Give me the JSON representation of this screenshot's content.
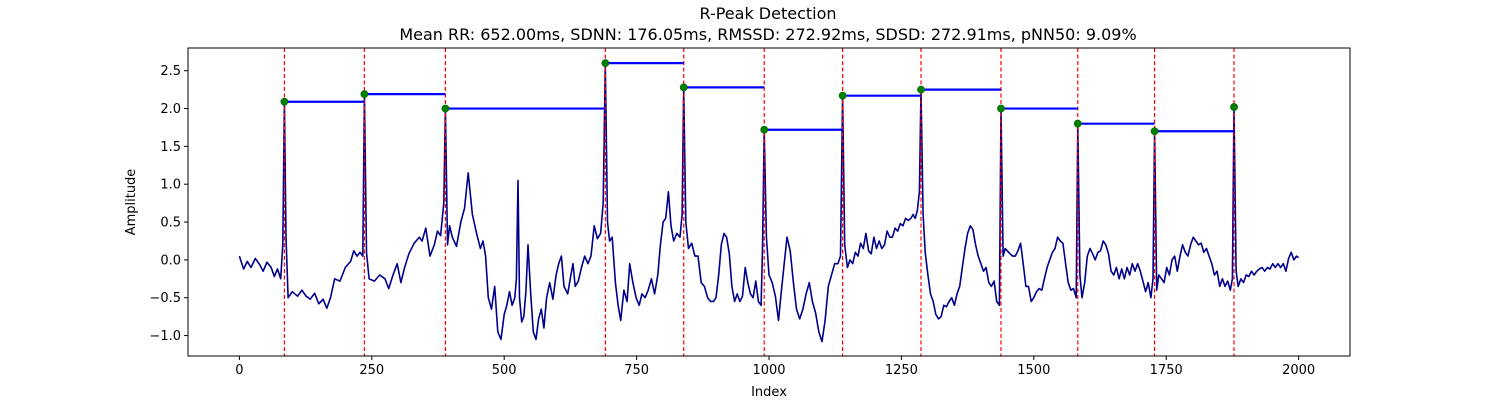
{
  "chart_data": {
    "type": "line",
    "title": "R-Peak Detection",
    "subtitle": "Mean RR: 652.00ms, SDNN: 176.05ms, RMSSD: 272.92ms, SDSD: 272.91ms, pNN50: 9.09%",
    "xlabel": "Index",
    "ylabel": "Amplitude",
    "xlim": [
      -97,
      2097
    ],
    "ylim": [
      -1.27,
      2.8
    ],
    "xticks": [
      0,
      250,
      500,
      750,
      1000,
      1250,
      1500,
      1750,
      2000
    ],
    "yticks": [
      -1.0,
      -0.5,
      0.0,
      0.5,
      1.0,
      1.5,
      2.0,
      2.5
    ],
    "grid": false,
    "colors": {
      "signal": "#00008b",
      "peak_line": "#ff0000",
      "rr_segment": "#0000ff",
      "peak_marker": "#008000",
      "axes": "#000000"
    },
    "signal_points": [
      [
        0,
        0.05
      ],
      [
        8,
        -0.12
      ],
      [
        15,
        -0.02
      ],
      [
        22,
        -0.1
      ],
      [
        30,
        0.02
      ],
      [
        38,
        -0.06
      ],
      [
        45,
        -0.15
      ],
      [
        52,
        -0.03
      ],
      [
        60,
        -0.1
      ],
      [
        66,
        -0.22
      ],
      [
        72,
        -0.12
      ],
      [
        78,
        -0.25
      ],
      [
        82,
        0.2
      ],
      [
        85,
        2.09
      ],
      [
        88,
        0.3
      ],
      [
        92,
        -0.5
      ],
      [
        100,
        -0.42
      ],
      [
        110,
        -0.48
      ],
      [
        118,
        -0.4
      ],
      [
        126,
        -0.48
      ],
      [
        134,
        -0.52
      ],
      [
        142,
        -0.44
      ],
      [
        150,
        -0.58
      ],
      [
        158,
        -0.52
      ],
      [
        165,
        -0.64
      ],
      [
        172,
        -0.5
      ],
      [
        180,
        -0.25
      ],
      [
        190,
        -0.28
      ],
      [
        200,
        -0.1
      ],
      [
        210,
        -0.02
      ],
      [
        216,
        0.12
      ],
      [
        222,
        0.05
      ],
      [
        228,
        0.1
      ],
      [
        233,
        0.05
      ],
      [
        236,
        2.19
      ],
      [
        240,
        0.1
      ],
      [
        245,
        -0.25
      ],
      [
        255,
        -0.28
      ],
      [
        265,
        -0.2
      ],
      [
        275,
        -0.25
      ],
      [
        282,
        -0.38
      ],
      [
        290,
        -0.2
      ],
      [
        298,
        -0.05
      ],
      [
        305,
        -0.3
      ],
      [
        312,
        -0.1
      ],
      [
        320,
        0.08
      ],
      [
        330,
        0.22
      ],
      [
        340,
        0.3
      ],
      [
        345,
        0.25
      ],
      [
        352,
        0.42
      ],
      [
        360,
        0.05
      ],
      [
        368,
        0.2
      ],
      [
        374,
        0.38
      ],
      [
        380,
        0.32
      ],
      [
        386,
        0.75
      ],
      [
        389,
        2.0
      ],
      [
        393,
        0.2
      ],
      [
        397,
        0.45
      ],
      [
        402,
        0.3
      ],
      [
        410,
        0.18
      ],
      [
        418,
        0.5
      ],
      [
        425,
        0.68
      ],
      [
        432,
        1.15
      ],
      [
        440,
        0.6
      ],
      [
        448,
        0.35
      ],
      [
        455,
        0.15
      ],
      [
        460,
        0.25
      ],
      [
        465,
        0.05
      ],
      [
        470,
        -0.5
      ],
      [
        476,
        -0.65
      ],
      [
        482,
        -0.35
      ],
      [
        488,
        -0.95
      ],
      [
        494,
        -1.05
      ],
      [
        500,
        -0.72
      ],
      [
        505,
        -0.6
      ],
      [
        510,
        -0.42
      ],
      [
        515,
        -0.6
      ],
      [
        520,
        -0.5
      ],
      [
        523,
        -0.25
      ],
      [
        526,
        1.05
      ],
      [
        529,
        -0.5
      ],
      [
        533,
        -0.82
      ],
      [
        537,
        -0.75
      ],
      [
        541,
        -0.42
      ],
      [
        545,
        0.2
      ],
      [
        550,
        -0.45
      ],
      [
        555,
        -0.95
      ],
      [
        560,
        -1.05
      ],
      [
        565,
        -0.78
      ],
      [
        570,
        -0.65
      ],
      [
        575,
        -0.9
      ],
      [
        580,
        -0.5
      ],
      [
        586,
        -0.3
      ],
      [
        592,
        -0.52
      ],
      [
        598,
        -0.2
      ],
      [
        603,
        -0.05
      ],
      [
        608,
        0.05
      ],
      [
        613,
        -0.35
      ],
      [
        620,
        -0.45
      ],
      [
        626,
        -0.2
      ],
      [
        630,
        -0.05
      ],
      [
        634,
        -0.35
      ],
      [
        640,
        -0.28
      ],
      [
        646,
        -0.1
      ],
      [
        652,
        0.05
      ],
      [
        658,
        -0.05
      ],
      [
        664,
        0.05
      ],
      [
        670,
        0.45
      ],
      [
        676,
        0.28
      ],
      [
        682,
        0.35
      ],
      [
        687,
        0.75
      ],
      [
        691,
        2.6
      ],
      [
        695,
        0.5
      ],
      [
        699,
        0.25
      ],
      [
        704,
        0.3
      ],
      [
        710,
        -0.3
      ],
      [
        715,
        -0.6
      ],
      [
        720,
        -0.8
      ],
      [
        726,
        -0.4
      ],
      [
        732,
        -0.55
      ],
      [
        737,
        -0.05
      ],
      [
        743,
        -0.3
      ],
      [
        749,
        -0.5
      ],
      [
        755,
        -0.6
      ],
      [
        760,
        -0.45
      ],
      [
        766,
        -0.5
      ],
      [
        772,
        -0.4
      ],
      [
        778,
        -0.25
      ],
      [
        784,
        -0.45
      ],
      [
        790,
        -0.2
      ],
      [
        795,
        0.2
      ],
      [
        800,
        0.5
      ],
      [
        805,
        0.55
      ],
      [
        810,
        0.9
      ],
      [
        815,
        0.45
      ],
      [
        820,
        0.25
      ],
      [
        826,
        0.35
      ],
      [
        832,
        0.3
      ],
      [
        836,
        0.6
      ],
      [
        839,
        2.28
      ],
      [
        843,
        0.5
      ],
      [
        848,
        0.15
      ],
      [
        854,
        0.22
      ],
      [
        860,
        0.05
      ],
      [
        866,
        0.05
      ],
      [
        872,
        -0.3
      ],
      [
        878,
        -0.35
      ],
      [
        884,
        -0.5
      ],
      [
        890,
        -0.55
      ],
      [
        895,
        -0.55
      ],
      [
        900,
        -0.5
      ],
      [
        905,
        -0.2
      ],
      [
        910,
        0.2
      ],
      [
        915,
        0.35
      ],
      [
        920,
        0.3
      ],
      [
        925,
        0.08
      ],
      [
        930,
        -0.35
      ],
      [
        935,
        -0.55
      ],
      [
        940,
        -0.45
      ],
      [
        945,
        -0.55
      ],
      [
        950,
        -0.48
      ],
      [
        955,
        -0.1
      ],
      [
        960,
        -0.3
      ],
      [
        965,
        -0.45
      ],
      [
        970,
        -0.5
      ],
      [
        975,
        -0.28
      ],
      [
        980,
        -0.55
      ],
      [
        985,
        -0.6
      ],
      [
        988,
        0.2
      ],
      [
        991,
        1.72
      ],
      [
        995,
        0.3
      ],
      [
        1000,
        -0.2
      ],
      [
        1006,
        -0.3
      ],
      [
        1012,
        -0.48
      ],
      [
        1018,
        -0.8
      ],
      [
        1022,
        -0.5
      ],
      [
        1028,
        -0.1
      ],
      [
        1034,
        0.3
      ],
      [
        1040,
        0.12
      ],
      [
        1046,
        -0.3
      ],
      [
        1052,
        -0.65
      ],
      [
        1058,
        -0.78
      ],
      [
        1064,
        -0.65
      ],
      [
        1070,
        -0.45
      ],
      [
        1076,
        -0.3
      ],
      [
        1082,
        -0.55
      ],
      [
        1088,
        -0.7
      ],
      [
        1094,
        -0.95
      ],
      [
        1100,
        -1.08
      ],
      [
        1106,
        -0.8
      ],
      [
        1112,
        -0.35
      ],
      [
        1118,
        -0.2
      ],
      [
        1124,
        -0.05
      ],
      [
        1130,
        -0.05
      ],
      [
        1135,
        0.05
      ],
      [
        1139,
        2.17
      ],
      [
        1143,
        0.2
      ],
      [
        1148,
        -0.1
      ],
      [
        1153,
        0.0
      ],
      [
        1158,
        -0.05
      ],
      [
        1163,
        0.1
      ],
      [
        1168,
        0.05
      ],
      [
        1173,
        0.22
      ],
      [
        1178,
        0.15
      ],
      [
        1183,
        0.35
      ],
      [
        1188,
        0.12
      ],
      [
        1193,
        0.08
      ],
      [
        1198,
        0.3
      ],
      [
        1203,
        0.15
      ],
      [
        1208,
        0.25
      ],
      [
        1213,
        0.15
      ],
      [
        1218,
        0.2
      ],
      [
        1223,
        0.38
      ],
      [
        1228,
        0.3
      ],
      [
        1233,
        0.3
      ],
      [
        1238,
        0.42
      ],
      [
        1243,
        0.38
      ],
      [
        1248,
        0.48
      ],
      [
        1253,
        0.45
      ],
      [
        1258,
        0.55
      ],
      [
        1263,
        0.52
      ],
      [
        1268,
        0.55
      ],
      [
        1272,
        0.6
      ],
      [
        1276,
        0.55
      ],
      [
        1280,
        0.65
      ],
      [
        1284,
        0.9
      ],
      [
        1287,
        2.25
      ],
      [
        1291,
        0.6
      ],
      [
        1295,
        0.1
      ],
      [
        1300,
        -0.2
      ],
      [
        1305,
        -0.45
      ],
      [
        1310,
        -0.55
      ],
      [
        1315,
        -0.72
      ],
      [
        1320,
        -0.78
      ],
      [
        1325,
        -0.75
      ],
      [
        1330,
        -0.6
      ],
      [
        1335,
        -0.62
      ],
      [
        1340,
        -0.55
      ],
      [
        1345,
        -0.5
      ],
      [
        1350,
        -0.6
      ],
      [
        1355,
        -0.45
      ],
      [
        1360,
        -0.35
      ],
      [
        1365,
        -0.1
      ],
      [
        1370,
        0.15
      ],
      [
        1375,
        0.35
      ],
      [
        1380,
        0.45
      ],
      [
        1385,
        0.4
      ],
      [
        1390,
        0.2
      ],
      [
        1395,
        0.05
      ],
      [
        1400,
        -0.05
      ],
      [
        1405,
        -0.15
      ],
      [
        1410,
        -0.1
      ],
      [
        1415,
        -0.3
      ],
      [
        1420,
        -0.35
      ],
      [
        1425,
        -0.28
      ],
      [
        1430,
        -0.55
      ],
      [
        1435,
        -0.6
      ],
      [
        1438,
        2.0
      ],
      [
        1442,
        0.05
      ],
      [
        1446,
        0.15
      ],
      [
        1450,
        0.12
      ],
      [
        1455,
        0.08
      ],
      [
        1460,
        0.05
      ],
      [
        1465,
        0.05
      ],
      [
        1470,
        0.12
      ],
      [
        1475,
        0.22
      ],
      [
        1480,
        -0.05
      ],
      [
        1485,
        -0.35
      ],
      [
        1490,
        -0.35
      ],
      [
        1495,
        -0.55
      ],
      [
        1500,
        -0.5
      ],
      [
        1505,
        -0.42
      ],
      [
        1510,
        -0.38
      ],
      [
        1515,
        -0.4
      ],
      [
        1520,
        -0.25
      ],
      [
        1525,
        -0.1
      ],
      [
        1530,
        0.0
      ],
      [
        1535,
        0.1
      ],
      [
        1540,
        0.15
      ],
      [
        1545,
        0.3
      ],
      [
        1550,
        0.25
      ],
      [
        1555,
        0.22
      ],
      [
        1560,
        -0.05
      ],
      [
        1565,
        -0.3
      ],
      [
        1570,
        -0.4
      ],
      [
        1575,
        -0.38
      ],
      [
        1580,
        -0.5
      ],
      [
        1583,
        1.8
      ],
      [
        1587,
        -0.2
      ],
      [
        1591,
        -0.5
      ],
      [
        1596,
        -0.3
      ],
      [
        1601,
        0.05
      ],
      [
        1606,
        0.15
      ],
      [
        1611,
        0.08
      ],
      [
        1616,
        0.0
      ],
      [
        1621,
        0.1
      ],
      [
        1626,
        0.12
      ],
      [
        1631,
        0.25
      ],
      [
        1636,
        0.2
      ],
      [
        1641,
        0.08
      ],
      [
        1646,
        -0.15
      ],
      [
        1651,
        -0.2
      ],
      [
        1656,
        -0.1
      ],
      [
        1661,
        -0.25
      ],
      [
        1666,
        -0.12
      ],
      [
        1671,
        -0.25
      ],
      [
        1676,
        -0.1
      ],
      [
        1681,
        -0.2
      ],
      [
        1686,
        -0.05
      ],
      [
        1691,
        -0.15
      ],
      [
        1696,
        -0.05
      ],
      [
        1701,
        -0.15
      ],
      [
        1706,
        -0.28
      ],
      [
        1711,
        -0.42
      ],
      [
        1716,
        -0.3
      ],
      [
        1721,
        -0.5
      ],
      [
        1725,
        -0.25
      ],
      [
        1728,
        1.7
      ],
      [
        1732,
        -0.4
      ],
      [
        1736,
        -0.2
      ],
      [
        1741,
        -0.25
      ],
      [
        1746,
        -0.3
      ],
      [
        1751,
        -0.1
      ],
      [
        1756,
        -0.2
      ],
      [
        1761,
        0.0
      ],
      [
        1766,
        0.05
      ],
      [
        1771,
        -0.15
      ],
      [
        1776,
        0.05
      ],
      [
        1781,
        0.2
      ],
      [
        1786,
        0.1
      ],
      [
        1791,
        0.05
      ],
      [
        1796,
        0.2
      ],
      [
        1801,
        0.3
      ],
      [
        1806,
        0.25
      ],
      [
        1811,
        0.2
      ],
      [
        1816,
        0.22
      ],
      [
        1821,
        0.1
      ],
      [
        1826,
        0.15
      ],
      [
        1831,
        0.05
      ],
      [
        1836,
        -0.05
      ],
      [
        1841,
        -0.2
      ],
      [
        1846,
        -0.15
      ],
      [
        1851,
        -0.35
      ],
      [
        1856,
        -0.25
      ],
      [
        1861,
        -0.35
      ],
      [
        1866,
        -0.28
      ],
      [
        1871,
        -0.4
      ],
      [
        1875,
        -0.25
      ],
      [
        1878,
        2.02
      ],
      [
        1882,
        -0.15
      ],
      [
        1886,
        -0.35
      ],
      [
        1891,
        -0.25
      ],
      [
        1896,
        -0.3
      ],
      [
        1901,
        -0.2
      ],
      [
        1906,
        -0.22
      ],
      [
        1911,
        -0.15
      ],
      [
        1916,
        -0.2
      ],
      [
        1921,
        -0.15
      ],
      [
        1926,
        -0.12
      ],
      [
        1931,
        -0.1
      ],
      [
        1936,
        -0.15
      ],
      [
        1941,
        -0.1
      ],
      [
        1946,
        -0.12
      ],
      [
        1951,
        -0.05
      ],
      [
        1956,
        -0.1
      ],
      [
        1961,
        -0.05
      ],
      [
        1966,
        -0.1
      ],
      [
        1971,
        -0.05
      ],
      [
        1976,
        -0.15
      ],
      [
        1981,
        0.02
      ],
      [
        1986,
        0.1
      ],
      [
        1991,
        0.0
      ],
      [
        1996,
        0.05
      ],
      [
        2000,
        0.03
      ]
    ],
    "peaks": [
      {
        "x": 85,
        "y": 2.09
      },
      {
        "x": 236,
        "y": 2.19
      },
      {
        "x": 389,
        "y": 2.0
      },
      {
        "x": 691,
        "y": 2.6
      },
      {
        "x": 839,
        "y": 2.28
      },
      {
        "x": 991,
        "y": 1.72
      },
      {
        "x": 1139,
        "y": 2.17
      },
      {
        "x": 1287,
        "y": 2.25
      },
      {
        "x": 1438,
        "y": 2.0
      },
      {
        "x": 1583,
        "y": 1.8
      },
      {
        "x": 1728,
        "y": 1.7
      },
      {
        "x": 1878,
        "y": 2.02
      }
    ]
  }
}
